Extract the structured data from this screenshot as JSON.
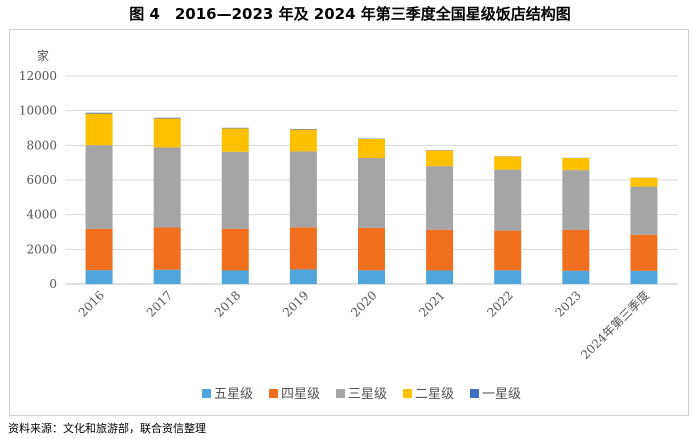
{
  "figure_title": "图 4　2016—2023 年及 2024 年第三季度全国星级饭店结构图",
  "source_note": "资料来源：文化和旅游部，联合资信整理",
  "chart_data": {
    "type": "bar",
    "stacked": true,
    "unit_label": "家",
    "categories": [
      "2016",
      "2017",
      "2018",
      "2019",
      "2020",
      "2021",
      "2022",
      "2023",
      "2024年第三季度"
    ],
    "ylim": [
      0,
      12000
    ],
    "yticks": [
      0,
      2000,
      4000,
      6000,
      8000,
      10000,
      12000
    ],
    "grid": true,
    "legend_position": "bottom",
    "series": [
      {
        "name": "五星级",
        "color": "#4ea6dc",
        "values": [
          800,
          820,
          780,
          840,
          790,
          780,
          790,
          760,
          760
        ]
      },
      {
        "name": "四星级",
        "color": "#f07020",
        "values": [
          2380,
          2440,
          2400,
          2430,
          2450,
          2350,
          2290,
          2360,
          2080
        ]
      },
      {
        "name": "三星级",
        "color": "#a5a5a5",
        "values": [
          4830,
          4620,
          4450,
          4380,
          4030,
          3670,
          3520,
          3450,
          2780
        ]
      },
      {
        "name": "二星级",
        "color": "#ffc000",
        "values": [
          1820,
          1670,
          1350,
          1260,
          1100,
          900,
          760,
          700,
          510
        ]
      },
      {
        "name": "一星级",
        "color": "#3d6fbe",
        "values": [
          50,
          40,
          30,
          30,
          20,
          20,
          10,
          10,
          10
        ]
      }
    ]
  }
}
